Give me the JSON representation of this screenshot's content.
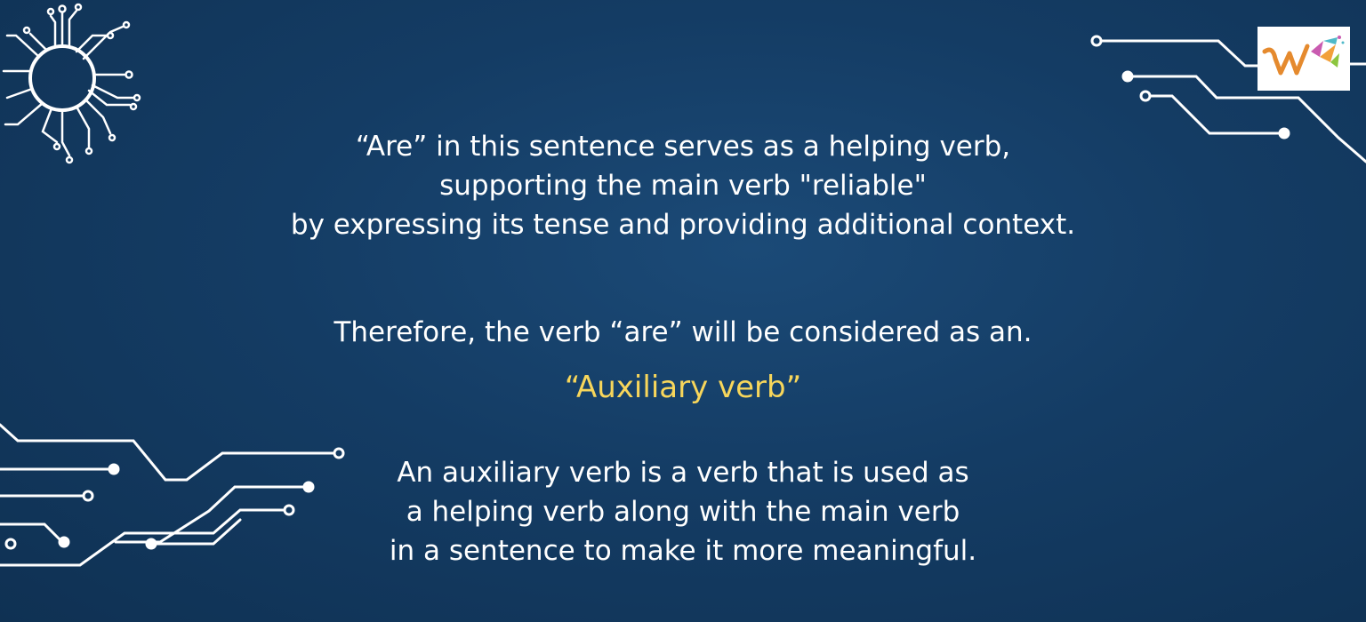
{
  "paragraph1": [
    "“Are” in this sentence serves as a helping verb,",
    "supporting the main verb \"reliable\"",
    "by expressing its tense and providing additional context."
  ],
  "paragraph2": "Therefore, the verb “are” will be considered as an.",
  "highlight": "“Auxiliary verb”",
  "paragraph3": [
    "An auxiliary verb is a verb that is used as",
    "a helping verb along with the main verb",
    "in a sentence to make it more meaningful."
  ],
  "colors": {
    "background": "#143c64",
    "text": "#ffffff",
    "highlight": "#f7d65b"
  },
  "icons": {
    "top_left": "circuit-sun-icon",
    "top_right": "circuit-lines-icon",
    "bottom_left": "circuit-lines-icon",
    "logo": "brand-logo-icon"
  }
}
